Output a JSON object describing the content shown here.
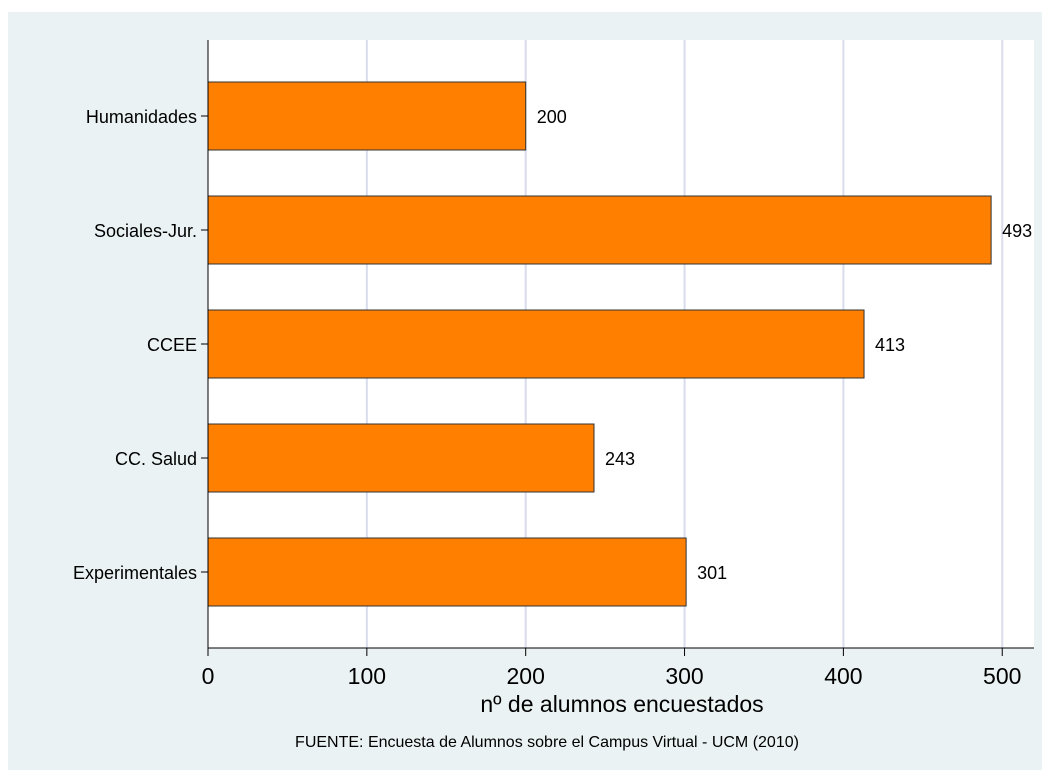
{
  "chart_data": {
    "type": "bar",
    "orientation": "horizontal",
    "categories": [
      "Humanidades",
      "Sociales-Jur.",
      "CCEE",
      "CC. Salud",
      "Experimentales"
    ],
    "values": [
      200,
      493,
      413,
      243,
      301
    ],
    "data_labels": [
      "200",
      "493",
      "413",
      "243",
      "301"
    ],
    "xlabel": "nº de alumnos encuestados",
    "ylabel": "",
    "xlim": [
      0,
      520
    ],
    "xticks": [
      0,
      100,
      200,
      300,
      400,
      500
    ],
    "xtick_labels": [
      "0",
      "100",
      "200",
      "300",
      "400",
      "500"
    ],
    "grid": "vertical",
    "legend": "none",
    "note": "FUENTE: Encuesta de Alumnos sobre el Campus Virtual - UCM (2010)",
    "colors": {
      "bar": "#ff7f00",
      "bar_edge": "#333333",
      "background": "#eaf2f3",
      "plot_area": "#ffffff",
      "grid": "#d9dcec"
    }
  }
}
